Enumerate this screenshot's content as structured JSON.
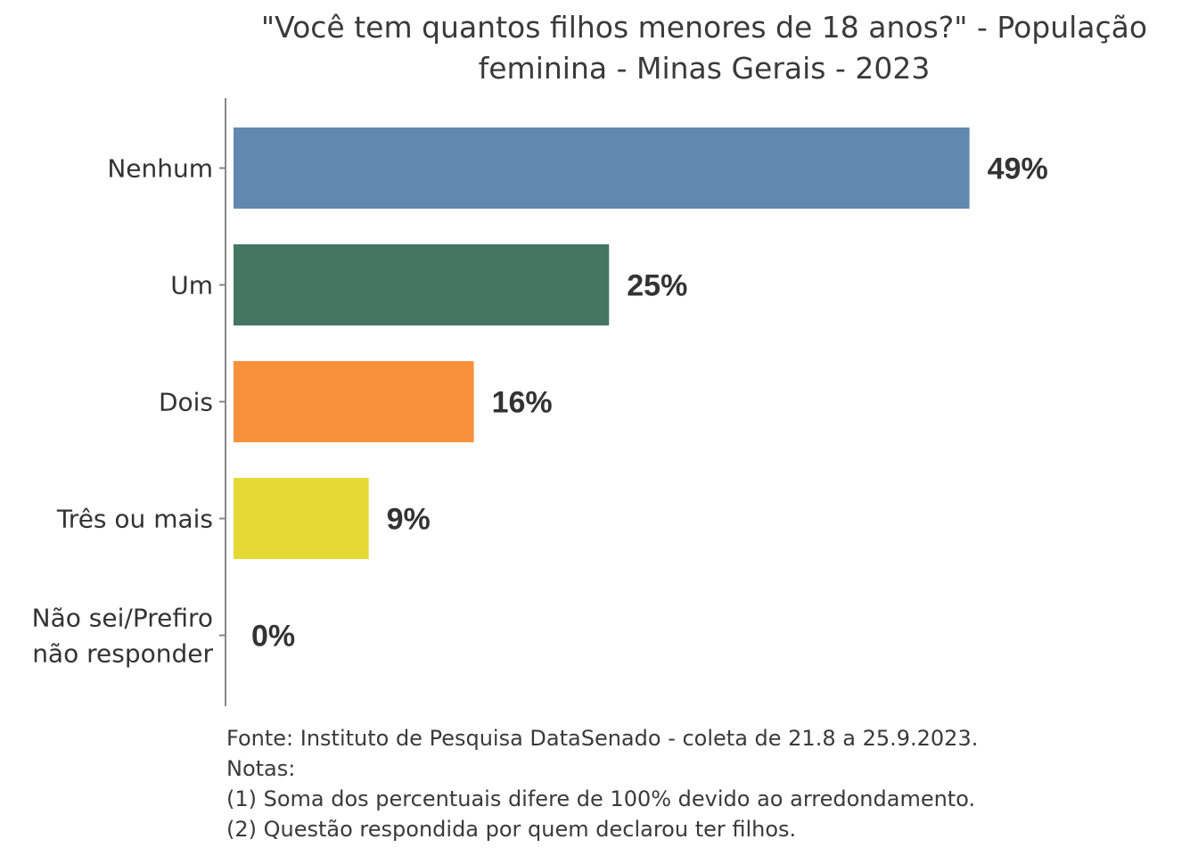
{
  "chart_data": {
    "type": "bar",
    "orientation": "horizontal",
    "title": "\"Você tem quantos filhos menores de 18 anos?\" - População feminina - Minas Gerais - 2023",
    "title_lines": [
      "\"Você tem quantos filhos menores de 18 anos?\" - População",
      "feminina - Minas Gerais - 2023"
    ],
    "categories": [
      [
        "Nenhum"
      ],
      [
        "Um"
      ],
      [
        "Dois"
      ],
      [
        "Três ou mais"
      ],
      [
        "Não sei/Prefiro",
        "não responder"
      ]
    ],
    "values": [
      49,
      25,
      16,
      9,
      0
    ],
    "value_labels": [
      "49%",
      "25%",
      "16%",
      "9%",
      "0%"
    ],
    "colors": [
      "#6388b0",
      "#447663",
      "#f8913c",
      "#e4d935",
      "#cccccc"
    ],
    "unit": "%",
    "xlabel": "",
    "ylabel": "",
    "xlim": [
      0,
      55
    ],
    "grid": false,
    "legend": "none"
  },
  "notes": [
    "Fonte: Instituto de Pesquisa DataSenado - coleta de 21.8 a 25.9.2023.",
    "Notas:",
    "(1) Soma dos percentuais difere de 100% devido ao arredondamento.",
    "(2) Questão respondida por quem declarou ter filhos."
  ]
}
